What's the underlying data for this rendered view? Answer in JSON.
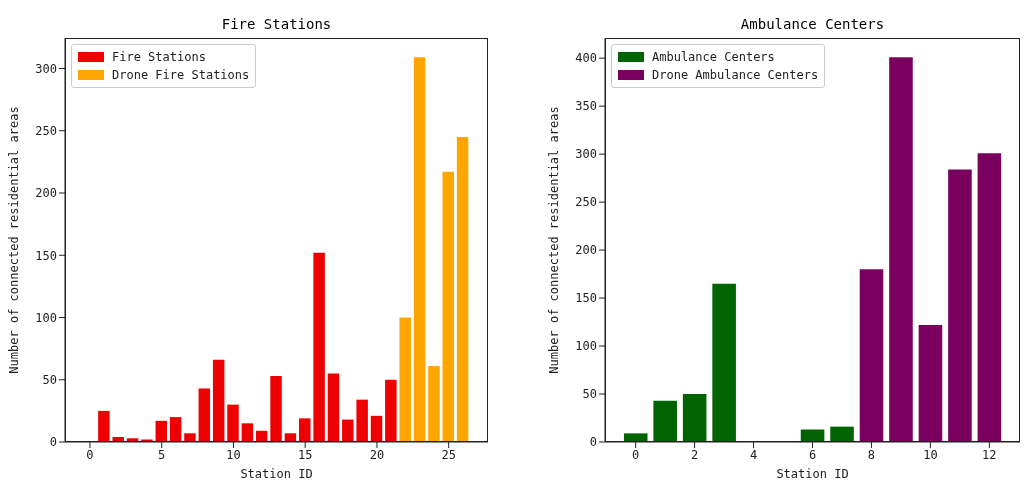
{
  "chart_data": [
    {
      "type": "bar",
      "title": "Fire Stations",
      "xlabel": "Station ID",
      "ylabel": "Number of connected residential areas",
      "legend": "top left",
      "x": [
        0,
        1,
        2,
        3,
        4,
        5,
        6,
        7,
        8,
        9,
        10,
        11,
        12,
        13,
        14,
        15,
        16,
        17,
        18,
        19,
        20,
        21,
        22,
        23,
        24,
        25,
        26
      ],
      "series": [
        {
          "name": "Fire Stations",
          "color": "#ee0000",
          "values": [
            0,
            25,
            4,
            3,
            2,
            17,
            20,
            7,
            43,
            66,
            30,
            15,
            9,
            53,
            7,
            19,
            152,
            55,
            18,
            34,
            21,
            50,
            null,
            null,
            null,
            null,
            null
          ]
        },
        {
          "name": "Drone Fire Stations",
          "color": "#ffa500",
          "values": [
            null,
            null,
            null,
            null,
            null,
            null,
            null,
            null,
            null,
            null,
            null,
            null,
            null,
            null,
            null,
            null,
            null,
            null,
            null,
            null,
            null,
            null,
            100,
            309,
            61,
            217,
            245
          ]
        }
      ],
      "xlim": [
        -1.74,
        27.74
      ],
      "xticks": [
        0,
        5,
        10,
        15,
        20,
        25
      ],
      "ylim": [
        0,
        324.5
      ],
      "yticks": [
        0,
        50,
        100,
        150,
        200,
        250,
        300
      ]
    },
    {
      "type": "bar",
      "title": "Ambulance Centers",
      "xlabel": "Station ID",
      "ylabel": "Number of connected residential areas",
      "legend": "top left",
      "x": [
        0,
        1,
        2,
        3,
        4,
        5,
        6,
        7,
        8,
        9,
        10,
        11,
        12
      ],
      "series": [
        {
          "name": "Ambulance Centers",
          "color": "#006400",
          "values": [
            9,
            43,
            50,
            165,
            0,
            0,
            13,
            16,
            null,
            null,
            null,
            null,
            null
          ]
        },
        {
          "name": "Drone Ambulance Centers",
          "color": "#7a0060",
          "values": [
            null,
            null,
            null,
            null,
            null,
            null,
            null,
            null,
            180,
            401,
            122,
            284,
            301
          ]
        }
      ],
      "xlim": [
        -1.04,
        13.04
      ],
      "xticks": [
        0,
        2,
        4,
        6,
        8,
        10,
        12
      ],
      "ylim": [
        0,
        421
      ],
      "yticks": [
        0,
        50,
        100,
        150,
        200,
        250,
        300,
        350,
        400
      ]
    }
  ]
}
